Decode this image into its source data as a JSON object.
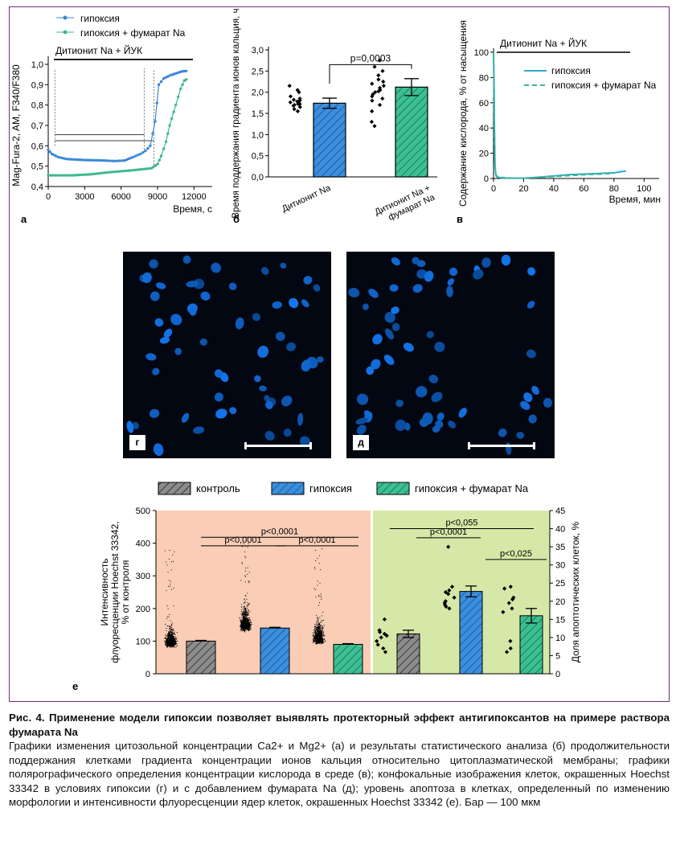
{
  "panel_a": {
    "letter": "а",
    "legend": [
      "гипоксия",
      "гипоксия + фумарат Na"
    ],
    "bar_label": "Дитионит Na + ЙУК",
    "ylabel": "Mag-Fura-2, AM, F340/F380",
    "xlabel": "Время, с",
    "yticks": [
      "0,4",
      "0,5",
      "0,6",
      "0,7",
      "0,8",
      "0,9",
      "1,0"
    ],
    "xticks": [
      "0",
      "3000",
      "6000",
      "9000",
      "12000"
    ]
  },
  "panel_b": {
    "letter": "б",
    "ylabel": "Время поддержания градиента ионов кальция, ч",
    "yticks": [
      "0,0",
      "0,5",
      "1,0",
      "1,5",
      "2,0",
      "2,5",
      "3,0"
    ],
    "categories": [
      "Дитионит Na",
      "Дитионит Na + фумарат Na"
    ],
    "pvalue": "p=0,0003"
  },
  "panel_v": {
    "letter": "в",
    "bar_label": "Дитионит Na + ЙУК",
    "legend": [
      "гипоксия",
      "гипоксия + фумарат Na"
    ],
    "ylabel": "Содержание кислорода, % от насыщения",
    "xlabel": "Время, мин",
    "yticks": [
      "0",
      "20",
      "40",
      "60",
      "80",
      "100"
    ],
    "xticks": [
      "0",
      "20",
      "40",
      "60",
      "80",
      "100"
    ]
  },
  "panel_g": {
    "letter": "г"
  },
  "panel_d": {
    "letter": "д"
  },
  "panel_e": {
    "letter": "е",
    "legend": [
      "контроль",
      "гипоксия",
      "гипоксия + фумарат Na"
    ],
    "ylabel_left": "Интенсивность флуоресценции Hoechst 33342, % от контроля",
    "ylabel_right": "Доля апоптотических клеток, %",
    "yticks_left": [
      "0",
      "100",
      "200",
      "300",
      "400",
      "500"
    ],
    "yticks_right": [
      "0",
      "5",
      "10",
      "15",
      "20",
      "25",
      "30",
      "35",
      "40",
      "45"
    ],
    "p_left": [
      "p<0,0001",
      "p<0,0001",
      "p<0,0001"
    ],
    "p_right": [
      "p<0,055",
      "p<0,0001",
      "p<0,025"
    ]
  },
  "chart_data": [
    {
      "type": "line",
      "panel": "а",
      "xlabel": "Время, с",
      "ylabel": "Mag-Fura-2, AM, F340/F380",
      "xlim": [
        0,
        13500
      ],
      "ylim": [
        0.4,
        1.0
      ],
      "series": [
        {
          "name": "гипоксия",
          "color": "#3b88d8",
          "x": [
            0,
            300,
            800,
            1500,
            3000,
            4500,
            5500,
            6300,
            7000,
            7600,
            8000,
            8400,
            8800,
            9100,
            9500,
            10000,
            10500,
            11000,
            11500
          ],
          "y": [
            0.58,
            0.56,
            0.545,
            0.535,
            0.53,
            0.528,
            0.525,
            0.528,
            0.545,
            0.56,
            0.575,
            0.6,
            0.72,
            0.9,
            0.93,
            0.945,
            0.955,
            0.965,
            0.968
          ]
        },
        {
          "name": "гипоксия + фумарат Na",
          "color": "#3cb98b",
          "x": [
            0,
            2000,
            3500,
            5000,
            7000,
            8500,
            9000,
            9300,
            9700,
            10000,
            10500,
            10900,
            11200,
            11500
          ],
          "y": [
            0.455,
            0.455,
            0.46,
            0.47,
            0.48,
            0.49,
            0.51,
            0.55,
            0.62,
            0.7,
            0.8,
            0.88,
            0.92,
            0.93
          ]
        }
      ]
    },
    {
      "type": "bar",
      "panel": "б",
      "categories": [
        "Дитионит Na",
        "Дитионит Na + фумарат Na"
      ],
      "values": [
        1.74,
        2.12
      ],
      "errors": [
        0.12,
        0.2
      ],
      "ylim": [
        0,
        3.0
      ],
      "ylabel": "Время поддержания градиента ионов кальция, ч",
      "points": [
        [
          1.55,
          1.6,
          1.65,
          1.68,
          1.7,
          1.72,
          1.72,
          1.75,
          1.76,
          1.78,
          1.8,
          1.82,
          1.85,
          1.9,
          2.0,
          2.05,
          2.15
        ],
        [
          1.2,
          1.3,
          1.55,
          1.7,
          1.8,
          1.85,
          1.9,
          1.95,
          2.0,
          2.02,
          2.05,
          2.1,
          2.15,
          2.2,
          2.25,
          2.3,
          2.4,
          2.5,
          2.6,
          2.75
        ]
      ],
      "pvalue": "p=0,0003"
    },
    {
      "type": "line",
      "panel": "в",
      "xlabel": "Время, мин",
      "ylabel": "Содержание кислорода, % от насыщения",
      "xlim": [
        0,
        110
      ],
      "ylim": [
        0,
        100
      ],
      "series": [
        {
          "name": "гипоксия",
          "color": "#2fa8c8",
          "x": [
            0,
            0.3,
            0.6,
            1,
            1.5,
            2,
            3,
            5,
            10,
            20,
            30,
            40,
            50,
            60,
            70,
            80,
            88
          ],
          "y": [
            100,
            80,
            40,
            10,
            3,
            1.5,
            1,
            0.5,
            0.2,
            0.2,
            1,
            2,
            3,
            3.5,
            4,
            4.5,
            6
          ]
        },
        {
          "name": "гипоксия + фумарат Na",
          "color": "#3cb98b",
          "x": [
            0,
            0.4,
            0.8,
            1.5,
            3,
            10,
            20,
            40,
            60,
            80
          ],
          "y": [
            100,
            60,
            15,
            3,
            1,
            0.4,
            0.3,
            1.5,
            3,
            4
          ]
        }
      ]
    },
    {
      "type": "bar",
      "panel": "е-left",
      "categories": [
        "контроль",
        "гипоксия",
        "гипоксия + фумарат Na"
      ],
      "values": [
        100,
        140,
        90
      ],
      "errors": [
        2,
        2,
        2
      ],
      "ylim": [
        0,
        500
      ],
      "ylabel": "Интенсивность флуоресценции Hoechst 33342, % от контроля"
    },
    {
      "type": "bar",
      "panel": "е-right",
      "categories": [
        "контроль",
        "гипоксия",
        "гипоксия + фумарат Na"
      ],
      "values": [
        11,
        22.7,
        16
      ],
      "errors": [
        1,
        1.5,
        2
      ],
      "ylim": [
        0,
        45
      ],
      "ylabel": "Доля апоптотических клеток, %",
      "points": [
        [
          6,
          7,
          8,
          9,
          10,
          10.5,
          11,
          11.5,
          12,
          15
        ],
        [
          18,
          18.5,
          19,
          19.5,
          20,
          21,
          22,
          22.5,
          23,
          24,
          35
        ],
        [
          6,
          7,
          9,
          17,
          18,
          19.5,
          20.5,
          21,
          23.5,
          24
        ]
      ]
    }
  ],
  "caption": {
    "title": "Рис. 4. Применение модели гипоксии позволяет выявлять протекторный эффект антигипоксантов на примере раствора фумарата Na",
    "text": "Графики изменения цитозольной концентрации Ca2+ и Mg2+ (а) и результаты статистического анализа (б) продолжительности поддержания клетками градиента концентрации ионов кальция относительно цитоплазматической мембраны; графики полярографического определения концентрации кислорода в среде (в); конфокальные изображения клеток, окрашенных Hoechst 33342 в условиях гипоксии (г) и с добавлением фумарата Na (д); уровень апоптоза в клетках, определенный по изменению морфологии и интенсивности флуоресценции ядер клеток, окрашенных Hoechst 33342 (е). Бар — 100 мкм"
  }
}
